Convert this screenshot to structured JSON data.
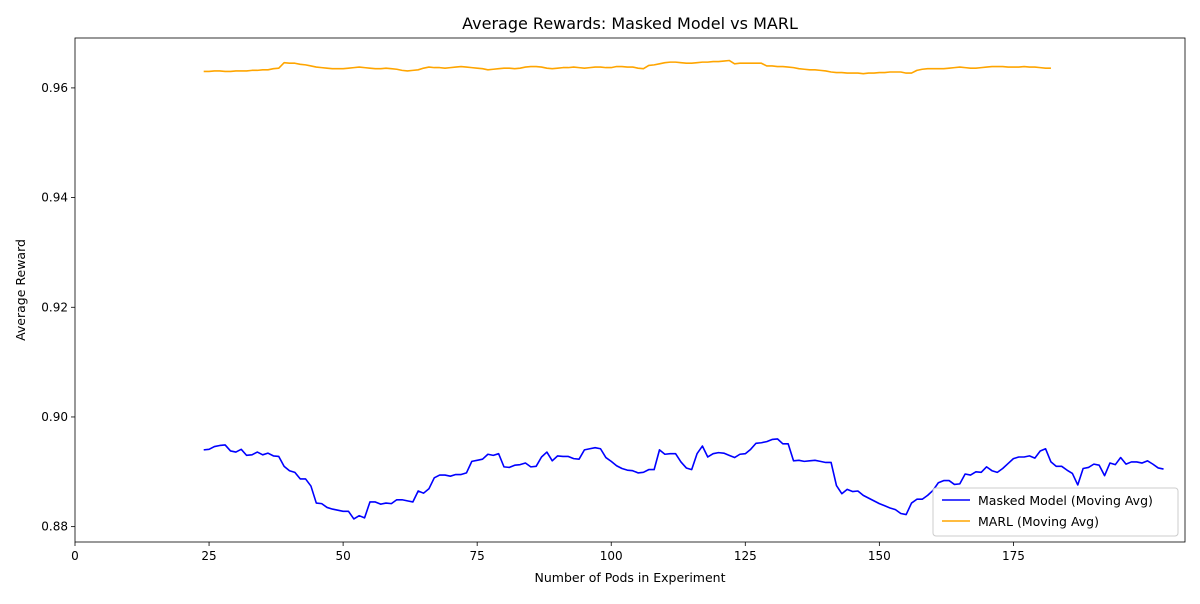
{
  "chart_data": {
    "type": "line",
    "title": "Average Rewards: Masked Model vs MARL",
    "xlabel": "Number of Pods in Experiment",
    "ylabel": "Average Reward",
    "xlim": [
      0,
      207
    ],
    "ylim": [
      0.8772,
      0.9691
    ],
    "xticks": [
      0,
      25,
      50,
      75,
      100,
      125,
      150,
      175
    ],
    "yticks": [
      0.88,
      0.9,
      0.92,
      0.94,
      0.96
    ],
    "ytick_labels": [
      "0.88",
      "0.90",
      "0.92",
      "0.94",
      "0.96"
    ],
    "grid": false,
    "legend_position": "lower-right",
    "series": [
      {
        "name": "Masked Model (Moving Avg)",
        "color": "#0000ff",
        "x_start": 24,
        "values": [
          0.894,
          0.8941,
          0.8946,
          0.8948,
          0.8949,
          0.8938,
          0.8936,
          0.8941,
          0.893,
          0.8931,
          0.8936,
          0.8931,
          0.8934,
          0.8929,
          0.8928,
          0.891,
          0.8902,
          0.8899,
          0.8887,
          0.8887,
          0.8874,
          0.8843,
          0.8842,
          0.8835,
          0.8832,
          0.883,
          0.8828,
          0.8828,
          0.8814,
          0.882,
          0.8816,
          0.8845,
          0.8845,
          0.8841,
          0.8843,
          0.8842,
          0.8849,
          0.8849,
          0.8847,
          0.8845,
          0.8865,
          0.8861,
          0.8869,
          0.8889,
          0.8894,
          0.8894,
          0.8892,
          0.8895,
          0.8895,
          0.8898,
          0.8919,
          0.8921,
          0.8923,
          0.8932,
          0.893,
          0.8933,
          0.8909,
          0.8908,
          0.8912,
          0.8913,
          0.8916,
          0.8909,
          0.891,
          0.8927,
          0.8936,
          0.892,
          0.8929,
          0.8928,
          0.8928,
          0.8924,
          0.8923,
          0.894,
          0.8942,
          0.8944,
          0.8942,
          0.8926,
          0.8919,
          0.8911,
          0.8906,
          0.8903,
          0.8902,
          0.8898,
          0.8899,
          0.8904,
          0.8904,
          0.894,
          0.8932,
          0.8933,
          0.8933,
          0.8918,
          0.8907,
          0.8904,
          0.8933,
          0.8947,
          0.8927,
          0.8933,
          0.8935,
          0.8934,
          0.893,
          0.8926,
          0.8932,
          0.8933,
          0.8941,
          0.8952,
          0.8953,
          0.8955,
          0.8959,
          0.896,
          0.8951,
          0.8951,
          0.892,
          0.8921,
          0.8919,
          0.892,
          0.8921,
          0.8919,
          0.8917,
          0.8917,
          0.8875,
          0.886,
          0.8868,
          0.8864,
          0.8865,
          0.8857,
          0.8852,
          0.8847,
          0.8842,
          0.8838,
          0.8834,
          0.8831,
          0.8824,
          0.8822,
          0.8843,
          0.885,
          0.885,
          0.8857,
          0.8866,
          0.888,
          0.8884,
          0.8884,
          0.8877,
          0.8878,
          0.8896,
          0.8894,
          0.89,
          0.8899,
          0.8909,
          0.8902,
          0.8899,
          0.8906,
          0.8915,
          0.8924,
          0.8927,
          0.8927,
          0.8929,
          0.8925,
          0.8938,
          0.8942,
          0.8918,
          0.891,
          0.891,
          0.8903,
          0.8897,
          0.8876,
          0.8906,
          0.8908,
          0.8914,
          0.8912,
          0.8893,
          0.8916,
          0.8913,
          0.8926,
          0.8914,
          0.8918,
          0.8918,
          0.8916,
          0.892,
          0.8914,
          0.8907,
          0.8905
        ]
      },
      {
        "name": "MARL (Moving Avg)",
        "color": "#ffa500",
        "x_start": 24,
        "values": [
          0.963,
          0.963,
          0.9631,
          0.9631,
          0.963,
          0.963,
          0.9631,
          0.9631,
          0.9631,
          0.9632,
          0.9632,
          0.9633,
          0.9633,
          0.9635,
          0.9636,
          0.9646,
          0.9645,
          0.9645,
          0.9643,
          0.9642,
          0.964,
          0.9638,
          0.9637,
          0.9636,
          0.9635,
          0.9635,
          0.9635,
          0.9636,
          0.9637,
          0.9638,
          0.9637,
          0.9636,
          0.9635,
          0.9635,
          0.9636,
          0.9635,
          0.9634,
          0.9632,
          0.9631,
          0.9632,
          0.9633,
          0.9636,
          0.9638,
          0.9637,
          0.9637,
          0.9636,
          0.9637,
          0.9638,
          0.9639,
          0.9638,
          0.9637,
          0.9636,
          0.9635,
          0.9633,
          0.9634,
          0.9635,
          0.9636,
          0.9636,
          0.9635,
          0.9636,
          0.9638,
          0.9639,
          0.9639,
          0.9638,
          0.9636,
          0.9635,
          0.9636,
          0.9637,
          0.9637,
          0.9638,
          0.9637,
          0.9636,
          0.9637,
          0.9638,
          0.9638,
          0.9637,
          0.9637,
          0.9639,
          0.9639,
          0.9638,
          0.9638,
          0.9636,
          0.9635,
          0.9641,
          0.9642,
          0.9644,
          0.9646,
          0.9647,
          0.9647,
          0.9646,
          0.9645,
          0.9645,
          0.9646,
          0.9647,
          0.9647,
          0.9648,
          0.9648,
          0.9649,
          0.965,
          0.9644,
          0.9645,
          0.9645,
          0.9645,
          0.9645,
          0.9645,
          0.964,
          0.964,
          0.9639,
          0.9639,
          0.9638,
          0.9637,
          0.9635,
          0.9634,
          0.9633,
          0.9633,
          0.9632,
          0.9631,
          0.9629,
          0.9628,
          0.9628,
          0.9627,
          0.9627,
          0.9627,
          0.9626,
          0.9627,
          0.9627,
          0.9628,
          0.9628,
          0.9629,
          0.9629,
          0.9629,
          0.9627,
          0.9627,
          0.9632,
          0.9634,
          0.9635,
          0.9635,
          0.9635,
          0.9635,
          0.9636,
          0.9637,
          0.9638,
          0.9637,
          0.9636,
          0.9636,
          0.9637,
          0.9638,
          0.9639,
          0.9639,
          0.9639,
          0.9638,
          0.9638,
          0.9638,
          0.9639,
          0.9638,
          0.9638,
          0.9637,
          0.9636,
          0.9636
        ]
      }
    ]
  }
}
